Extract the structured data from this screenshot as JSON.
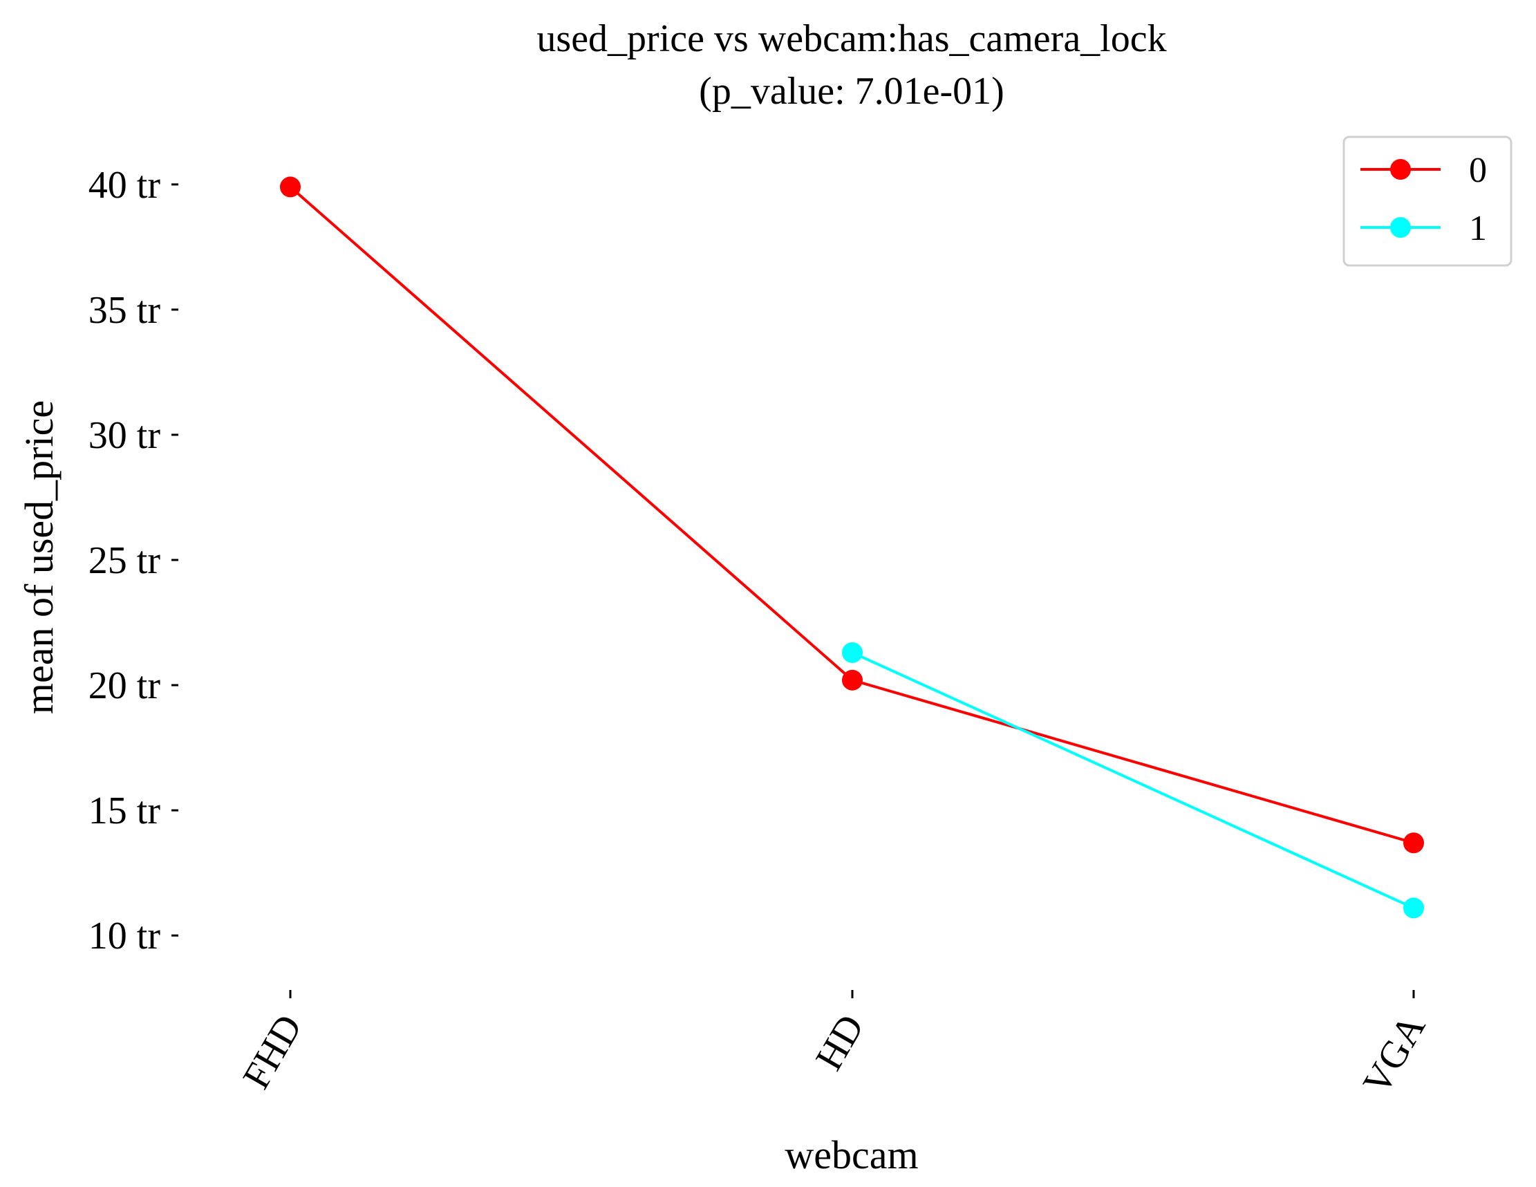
{
  "chart_data": {
    "type": "line",
    "title": "used_price vs webcam:has_camera_lock",
    "subtitle": "(p_value: 7.01e-01)",
    "xlabel": "webcam",
    "ylabel": "mean of used_price",
    "categories": [
      "FHD",
      "HD",
      "VGA"
    ],
    "yticks": [
      {
        "value": 10,
        "label": "10 tr"
      },
      {
        "value": 15,
        "label": "15 tr"
      },
      {
        "value": 20,
        "label": "20 tr"
      },
      {
        "value": 25,
        "label": "25 tr"
      },
      {
        "value": 30,
        "label": "30 tr"
      },
      {
        "value": 35,
        "label": "35 tr"
      },
      {
        "value": 40,
        "label": "40 tr"
      }
    ],
    "ylim": [
      8.1,
      41.9
    ],
    "grid": false,
    "legend_position": "top-right",
    "series": [
      {
        "name": "0",
        "color": "#ff0000",
        "values": [
          39.9,
          20.2,
          13.7
        ]
      },
      {
        "name": "1",
        "color": "#00ffff",
        "values": [
          null,
          21.3,
          11.1
        ]
      }
    ]
  }
}
